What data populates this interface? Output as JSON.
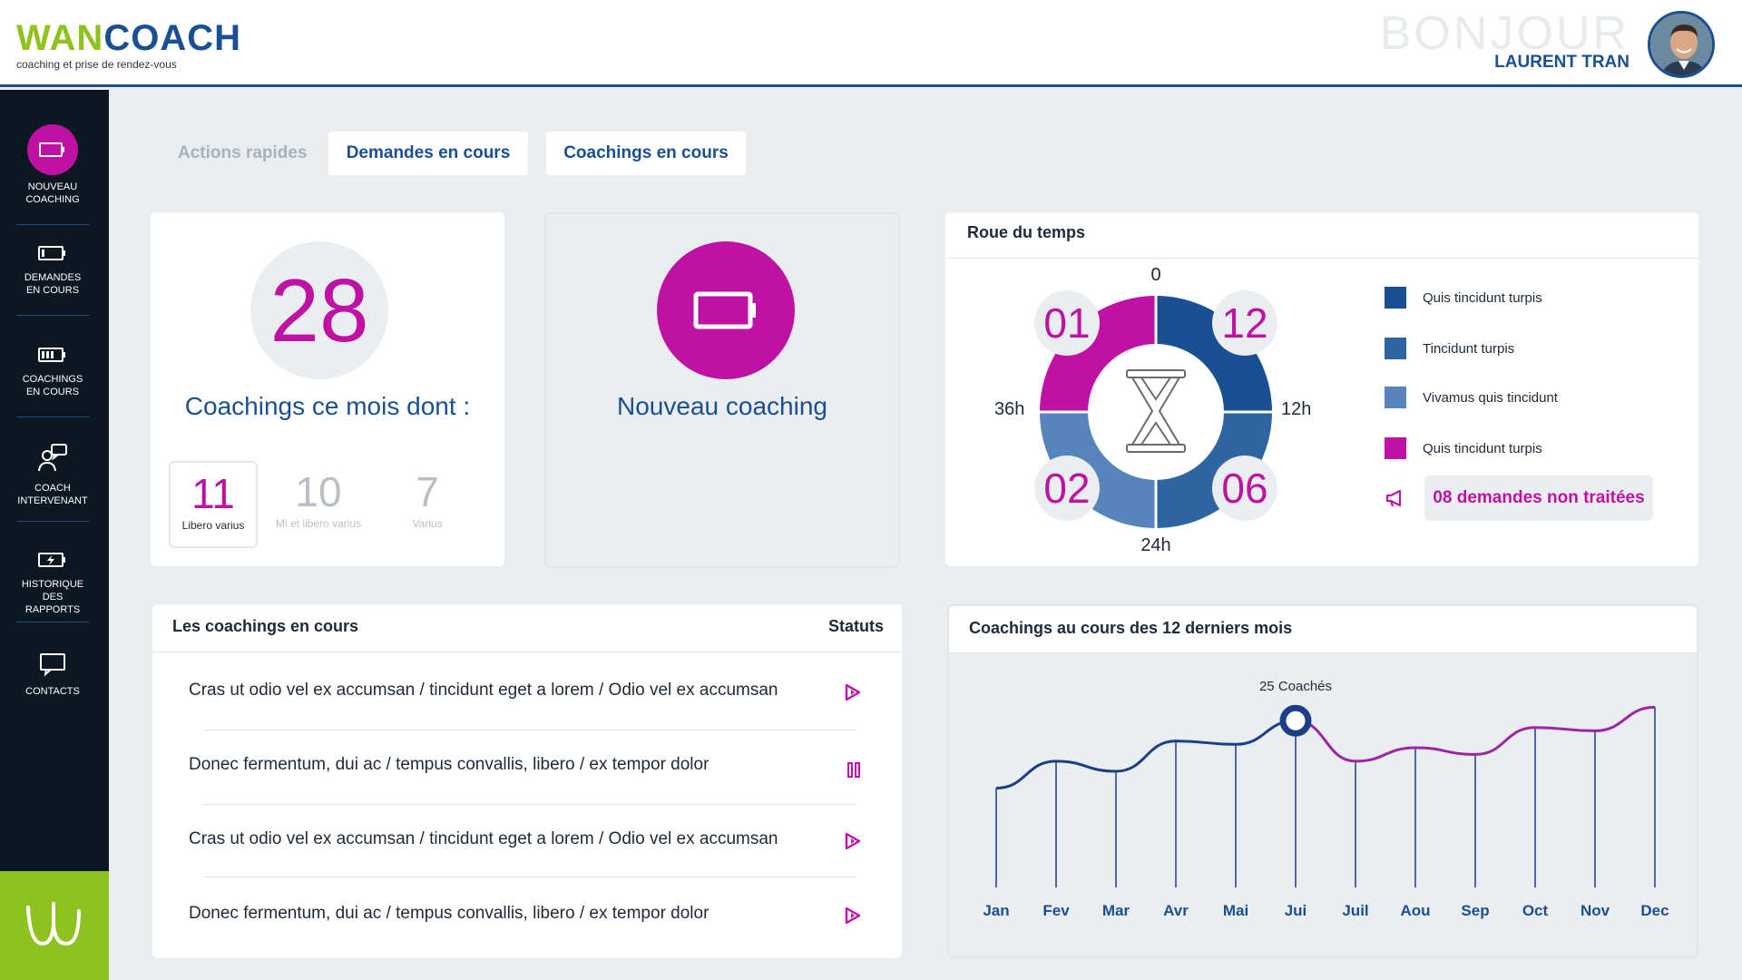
{
  "header": {
    "logo_wan": "WAN",
    "logo_coach": "COACH",
    "logo_tagline": "coaching et prise de rendez-vous",
    "greeting": "BONJOUR",
    "user_name": "LAURENT TRAN"
  },
  "sidebar": {
    "items": [
      {
        "line1": "NOUVEAU",
        "line2": "COACHING",
        "icon": "battery-icon"
      },
      {
        "line1": "DEMANDES",
        "line2": "EN COURS",
        "icon": "battery-low-icon"
      },
      {
        "line1": "COACHINGS",
        "line2": "EN COURS",
        "icon": "battery-half-icon"
      },
      {
        "line1": "COACH",
        "line2": "INTERVENANT",
        "icon": "coach-chat-icon"
      },
      {
        "line1": "HISTORIQUE",
        "line2": "DES RAPPORTS",
        "icon": "battery-charge-icon"
      },
      {
        "line1": "CONTACTS",
        "line2": "",
        "icon": "message-icon"
      }
    ]
  },
  "quick_actions": {
    "label": "Actions rapides",
    "buttons": [
      "Demandes en cours",
      "Coachings en cours"
    ]
  },
  "stats_card": {
    "total": "28",
    "caption": "Coachings ce mois dont :",
    "breakdown": [
      {
        "value": "11",
        "label": "Libero varius"
      },
      {
        "value": "10",
        "label": "Mi et libero varius"
      },
      {
        "value": "7",
        "label": "Varius"
      }
    ]
  },
  "new_coaching_card": {
    "label": "Nouveau coaching"
  },
  "time_wheel": {
    "title": "Roue du temps",
    "axis": {
      "top": "0",
      "right": "12h",
      "bottom": "24h",
      "left": "36h"
    },
    "quadrants": [
      {
        "value": "12",
        "color": "#1b4f93"
      },
      {
        "value": "06",
        "color": "#2f64a2"
      },
      {
        "value": "02",
        "color": "#5785bb"
      },
      {
        "value": "01",
        "color": "#bf11a4"
      }
    ],
    "legend": [
      {
        "label": "Quis tincidunt turpis",
        "color": "#1b4f93"
      },
      {
        "label": "Tincidunt turpis",
        "color": "#2f64a2"
      },
      {
        "label": "Vivamus quis tincidunt",
        "color": "#5785bb"
      },
      {
        "label": "Quis tincidunt turpis",
        "color": "#bf11a4"
      }
    ],
    "alert": "08 demandes non traitées"
  },
  "current_coachings": {
    "title": "Les coachings en cours",
    "status_header": "Statuts",
    "rows": [
      {
        "text": "Cras ut odio vel ex accumsan / tincidunt eget a lorem / Odio vel ex accumsan",
        "status": "play-icon"
      },
      {
        "text": "Donec fermentum, dui ac  /  tempus convallis, libero /  ex tempor dolor",
        "status": "pause-icon"
      },
      {
        "text": "Cras ut odio vel ex accumsan / tincidunt eget a lorem / Odio vel ex accumsan",
        "status": "play-icon"
      },
      {
        "text": "Donec fermentum, dui ac  /  tempus convallis, libero /  ex tempor dolor",
        "status": "play-icon"
      }
    ]
  },
  "chart_data": {
    "type": "line",
    "title": "Coachings au cours des 12 derniers mois",
    "categories": [
      "Jan",
      "Fev",
      "Mar",
      "Avr",
      "Mai",
      "Jui",
      "Juil",
      "Aou",
      "Sep",
      "Oct",
      "Nov",
      "Dec"
    ],
    "values": [
      15,
      19,
      17.5,
      22,
      21.5,
      25,
      19,
      21,
      20,
      24,
      23.5,
      27
    ],
    "ylim": [
      0,
      35
    ],
    "highlight_index": 5,
    "annotation": "25 Coachés",
    "colors": {
      "before": "#1b3f86",
      "after": "#9b25a6"
    },
    "grid": false
  }
}
